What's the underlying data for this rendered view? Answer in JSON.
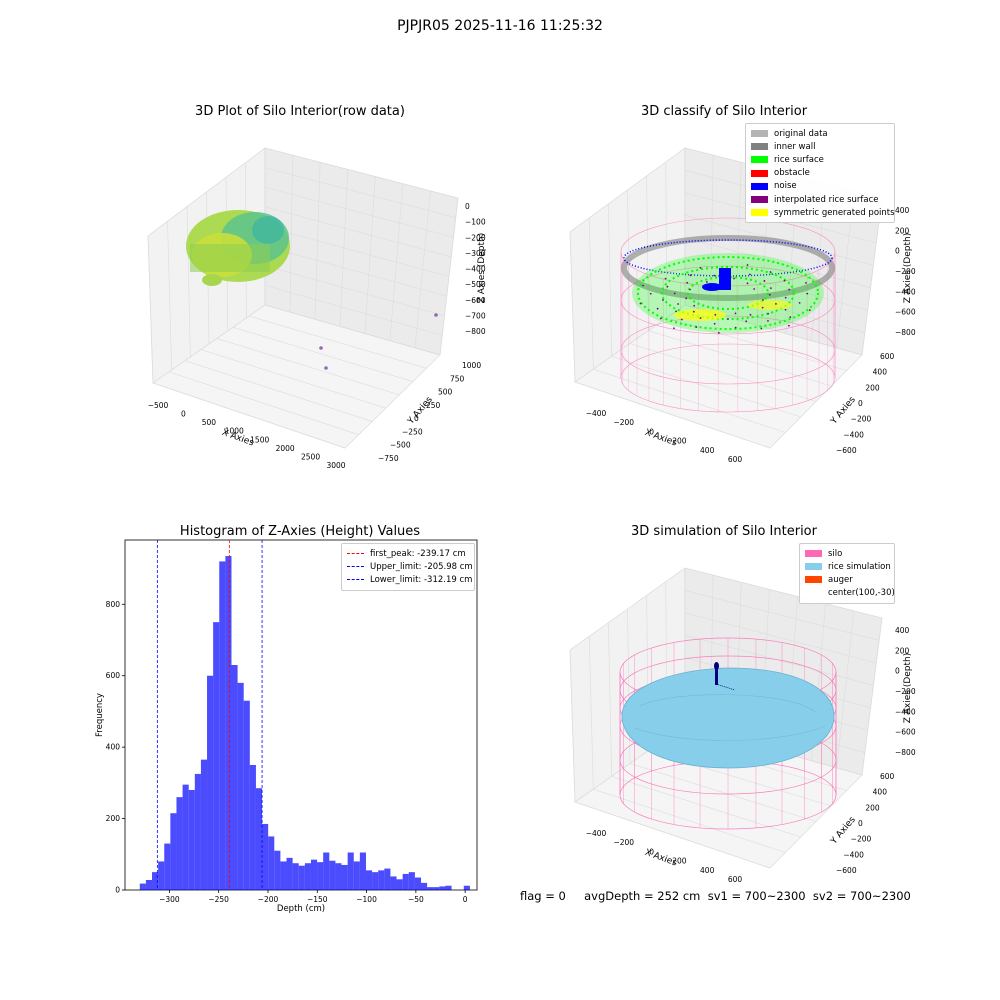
{
  "suptitle": "PJPJR05 2025-11-16 11:25:32",
  "panels": {
    "raw": {
      "title": "3D Plot of Silo Interior(row data)",
      "xlabel": "X Axies",
      "ylabel": "Y Axies",
      "zlabel": "Z Axies (Depth)",
      "xticks": [
        "-500",
        "0",
        "500",
        "1000",
        "1500",
        "2000",
        "2500",
        "3000"
      ],
      "yticks": [
        "-750",
        "-500",
        "-250",
        "0",
        "250",
        "500",
        "750",
        "1000"
      ],
      "zticks": [
        "0",
        "-100",
        "-200",
        "-300",
        "-400",
        "-500",
        "-600",
        "-700",
        "-800"
      ]
    },
    "classify": {
      "title": "3D classify of Silo Interior",
      "xlabel": "X Axies",
      "ylabel": "Y Axies",
      "zlabel": "Z Axies (Depth)",
      "xticks": [
        "-400",
        "-200",
        "0",
        "200",
        "400",
        "600"
      ],
      "yticks": [
        "-600",
        "-400",
        "-200",
        "0",
        "200",
        "400",
        "600"
      ],
      "zticks": [
        "400",
        "200",
        "0",
        "-200",
        "-400",
        "-600",
        "-800"
      ],
      "legend": [
        {
          "label": "original data",
          "color": "#b3b3b3"
        },
        {
          "label": "inner wall",
          "color": "#808080"
        },
        {
          "label": "rice surface",
          "color": "#00ff00"
        },
        {
          "label": "obstacle",
          "color": "#ff0000"
        },
        {
          "label": "noise",
          "color": "#0000ff"
        },
        {
          "label": "interpolated rice surface",
          "color": "#800080"
        },
        {
          "label": "symmetric generated points",
          "color": "#ffff00"
        }
      ]
    },
    "simulation": {
      "title": "3D simulation of Silo Interior",
      "xlabel": "X Axies",
      "ylabel": "Y Axies",
      "zlabel": "Z Axies (Depth)",
      "xticks": [
        "-400",
        "-200",
        "0",
        "200",
        "400",
        "600"
      ],
      "yticks": [
        "-600",
        "-400",
        "-200",
        "0",
        "200",
        "400",
        "600"
      ],
      "zticks": [
        "400",
        "200",
        "0",
        "-200",
        "-400",
        "-600",
        "-800"
      ],
      "legend": [
        {
          "label": "silo",
          "color": "#ff69b4"
        },
        {
          "label": "rice simulation",
          "color": "#87ceeb"
        },
        {
          "label": "auger",
          "color": "#ff4500"
        },
        {
          "label": "center(100,-30)",
          "color": ""
        }
      ]
    }
  },
  "footer": "flag = 0     avgDepth = 252 cm  sv1 = 700~2300  sv2 = 700~2300",
  "chart_data": [
    {
      "type": "bar",
      "title": "Histogram of Z-Axies (Height) Values",
      "xlabel": "Depth (cm)",
      "ylabel": "Frequency",
      "xlim": [
        -345,
        12
      ],
      "ylim": [
        0,
        980
      ],
      "xticks": [
        -300,
        -250,
        -200,
        -150,
        -100,
        -50,
        0
      ],
      "yticks": [
        0,
        200,
        400,
        600,
        800
      ],
      "bin_width": 6.2,
      "bin_starts": [
        -330,
        -323.8,
        -317.6,
        -311.4,
        -305.2,
        -299,
        -292.8,
        -286.6,
        -280.4,
        -274.2,
        -268,
        -261.8,
        -255.6,
        -249.4,
        -243.2,
        -237,
        -230.8,
        -224.6,
        -218.4,
        -212.2,
        -206,
        -199.8,
        -193.6,
        -187.4,
        -181.2,
        -175,
        -168.8,
        -162.6,
        -156.4,
        -150.2,
        -144,
        -137.8,
        -131.6,
        -125.4,
        -119.2,
        -113,
        -106.8,
        -100.6,
        -94.4,
        -88.2,
        -82,
        -75.8,
        -69.6,
        -63.4,
        -57.2,
        -51,
        -44.8,
        -38.6,
        -32.4,
        -26.2,
        -20,
        -13.8,
        -7.6,
        -1.4
      ],
      "values": [
        18,
        28,
        50,
        80,
        130,
        215,
        260,
        295,
        280,
        325,
        365,
        600,
        750,
        920,
        935,
        630,
        580,
        530,
        350,
        285,
        185,
        150,
        110,
        80,
        90,
        75,
        68,
        75,
        85,
        78,
        105,
        82,
        75,
        70,
        105,
        80,
        105,
        55,
        50,
        55,
        60,
        38,
        30,
        45,
        50,
        35,
        20,
        8,
        8,
        10,
        12,
        0,
        0,
        12
      ],
      "bar_color": "#0000ff",
      "bar_alpha": 0.7,
      "vlines": [
        {
          "label": "first_peak: -239.17 cm",
          "x": -239.17,
          "color": "#ff0000"
        },
        {
          "label": "Upper_limit: -205.98 cm",
          "x": -205.98,
          "color": "#0000ff"
        },
        {
          "label": "Lower_limit: -312.19 cm",
          "x": -312.19,
          "color": "#0000ff"
        }
      ],
      "legend_position": "upper right"
    },
    {
      "type": "scatter",
      "title": "3D Plot of Silo Interior(row data)",
      "outlier_points": [
        {
          "x": 2700,
          "y": 800,
          "z": -700
        },
        {
          "x": 2500,
          "y": -200,
          "z": -800
        },
        {
          "x": 2200,
          "y": 200,
          "z": -800
        }
      ]
    }
  ]
}
